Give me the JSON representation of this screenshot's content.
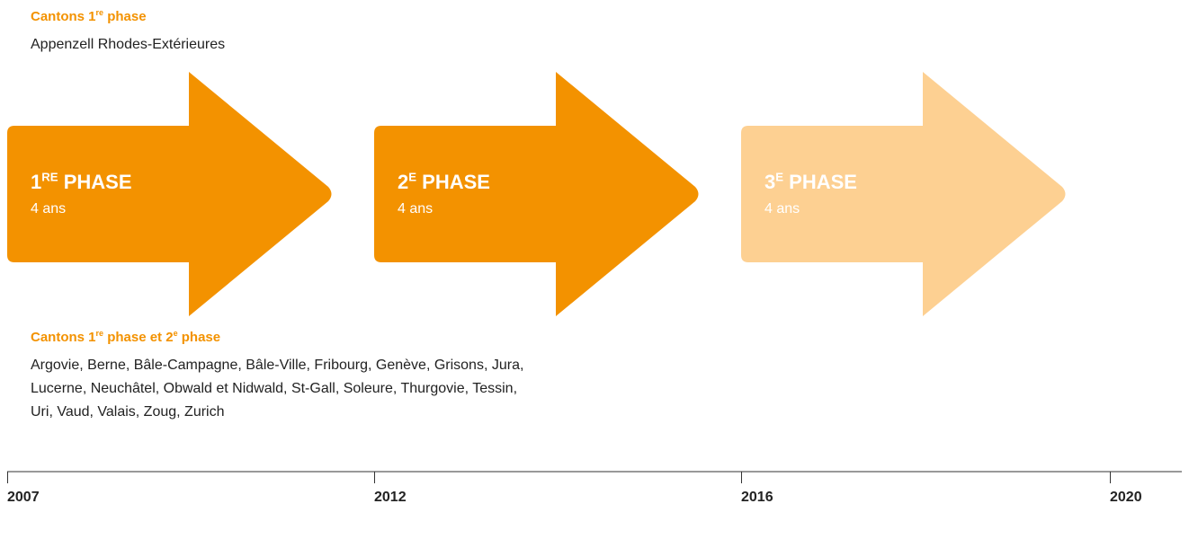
{
  "top_group": {
    "title": [
      "Cantons 1",
      "re",
      " phase"
    ],
    "text": "Appenzell Rhodes-Extérieures"
  },
  "phases": [
    {
      "label": [
        "1",
        "RE",
        " PHASE"
      ],
      "duration": "4 ans",
      "color": "#f39200"
    },
    {
      "label": [
        "2",
        "E",
        " PHASE"
      ],
      "duration": "4 ans",
      "color": "#f39200"
    },
    {
      "label": [
        "3",
        "E",
        " PHASE"
      ],
      "duration": "4 ans",
      "color": "#fdd092"
    }
  ],
  "bottom_group": {
    "title": [
      "Cantons 1",
      "re",
      " phase et 2",
      "e",
      " phase"
    ],
    "lines": [
      "Argovie, Berne, Bâle-Campagne, Bâle-Ville, Fribourg, Genève, Grisons, Jura,",
      "Lucerne, Neuchâtel, Obwald et Nidwald, St-Gall, Soleure, Thurgovie, Tessin,",
      "Uri, Vaud, Valais, Zoug, Zurich"
    ]
  },
  "timeline": [
    "2007",
    "2012",
    "2016",
    "2020"
  ]
}
